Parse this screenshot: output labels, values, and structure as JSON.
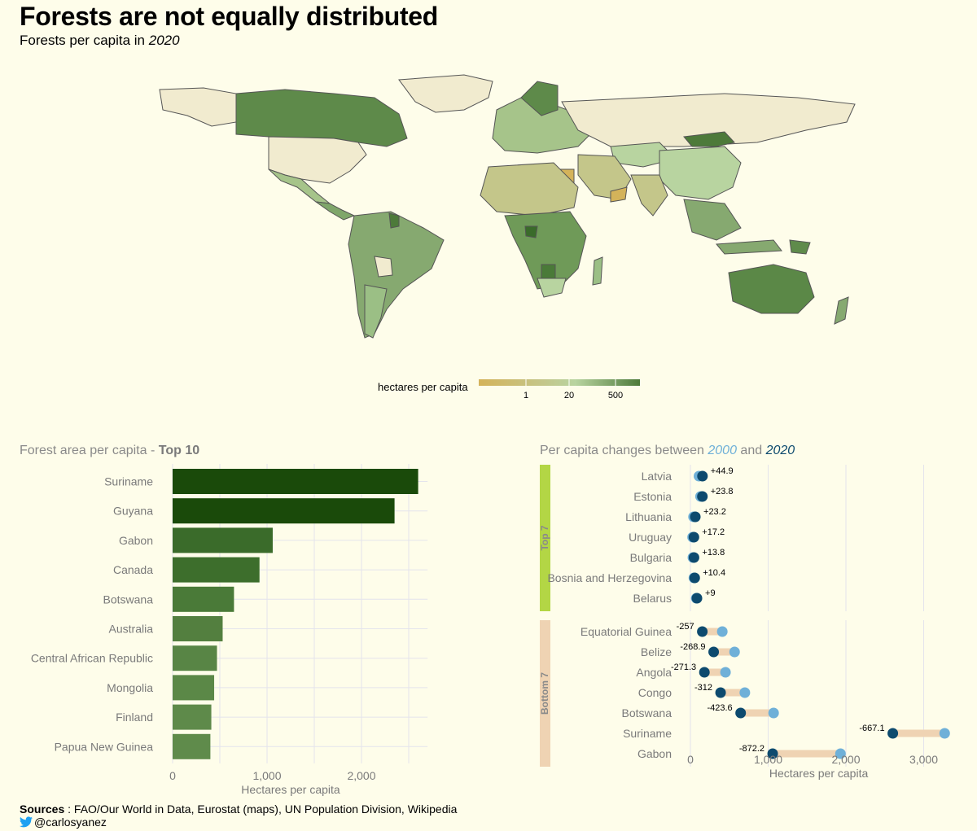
{
  "header": {
    "title": "Forests are not equally distributed",
    "subtitle_prefix": "Forests per capita in",
    "subtitle_year": "2020"
  },
  "map": {
    "legend_title": "hectares per capita",
    "legend_ticks": [
      "1",
      "20",
      "500"
    ],
    "colors": {
      "low": "#d4b35a",
      "mid": "#b8d4a0",
      "high": "#4d7a3a",
      "none": "#f1ebcf",
      "border": "#555555"
    }
  },
  "bar_panel": {
    "title_prefix": "Forest area per capita - ",
    "title_bold": "Top 10"
  },
  "dumbbell_panel": {
    "title_prefix": "Per capita changes between",
    "year_a": "2000",
    "and": "and",
    "year_b": "2020",
    "color_2000": "#6fb0d8",
    "color_2020": "#0d4a6e",
    "group_top_label": "Top 7",
    "group_bottom_label": "Bottom 7",
    "group_top_color": "#b3d645",
    "group_bottom_color": "#efd3b3"
  },
  "chart_data": [
    {
      "type": "bar",
      "orientation": "horizontal",
      "categories": [
        "Suriname",
        "Guyana",
        "Gabon",
        "Canada",
        "Botswana",
        "Australia",
        "Central African Republic",
        "Mongolia",
        "Finland",
        "Papua New Guinea"
      ],
      "values": [
        2600,
        2350,
        1060,
        920,
        650,
        530,
        470,
        440,
        410,
        400
      ],
      "colors": [
        "#1a4a0a",
        "#1a4a0a",
        "#3a6b2a",
        "#3d6e2c",
        "#4a7a38",
        "#537f3f",
        "#588545",
        "#5b8847",
        "#5e8a4a",
        "#5f8b4b"
      ],
      "xlabel": "Hectares per capita",
      "ylabel": "",
      "xlim": [
        0,
        2650
      ],
      "xticks": [
        0,
        1000,
        2000
      ],
      "xtick_labels": [
        "0",
        "1,000",
        "2,000"
      ]
    },
    {
      "type": "dumbbell",
      "xlabel": "Hectares per capita",
      "xlim": [
        0,
        3300
      ],
      "xticks": [
        0,
        1000,
        2000,
        3000
      ],
      "xtick_labels": [
        "0",
        "1,000",
        "2,000",
        "3,000"
      ],
      "groups": [
        {
          "name": "Top 7",
          "rows": [
            {
              "country": "Latvia",
              "y2000": 110,
              "y2020": 155,
              "change": "+44.9"
            },
            {
              "country": "Estonia",
              "y2000": 130,
              "y2020": 154,
              "change": "+23.8"
            },
            {
              "country": "Lithuania",
              "y2000": 40,
              "y2020": 63,
              "change": "+23.2"
            },
            {
              "country": "Uruguay",
              "y2000": 28,
              "y2020": 45,
              "change": "+17.2"
            },
            {
              "country": "Bulgaria",
              "y2000": 32,
              "y2020": 46,
              "change": "+13.8"
            },
            {
              "country": "Bosnia and Herzegovina",
              "y2000": 45,
              "y2020": 55,
              "change": "+10.4"
            },
            {
              "country": "Belarus",
              "y2000": 75,
              "y2020": 84,
              "change": "+9"
            }
          ]
        },
        {
          "name": "Bottom 7",
          "rows": [
            {
              "country": "Equatorial Guinea",
              "y2000": 410,
              "y2020": 153,
              "change": "-257"
            },
            {
              "country": "Belize",
              "y2000": 568,
              "y2020": 299,
              "change": "-268.9"
            },
            {
              "country": "Angola",
              "y2000": 451,
              "y2020": 180,
              "change": "-271.3"
            },
            {
              "country": "Congo",
              "y2000": 700,
              "y2020": 388,
              "change": "-312"
            },
            {
              "country": "Botswana",
              "y2000": 1070,
              "y2020": 646,
              "change": "-423.6"
            },
            {
              "country": "Suriname",
              "y2000": 3270,
              "y2020": 2603,
              "change": "-667.1"
            },
            {
              "country": "Gabon",
              "y2000": 1930,
              "y2020": 1058,
              "change": "-872.2"
            }
          ]
        }
      ]
    }
  ],
  "footer": {
    "sources_label": "Sources",
    "sources_text": " : FAO/Our World in Data, Eurostat (maps), UN Population Division, Wikipedia",
    "handle": "@carlosyanez",
    "twitter_icon_color": "#1da1f2"
  }
}
